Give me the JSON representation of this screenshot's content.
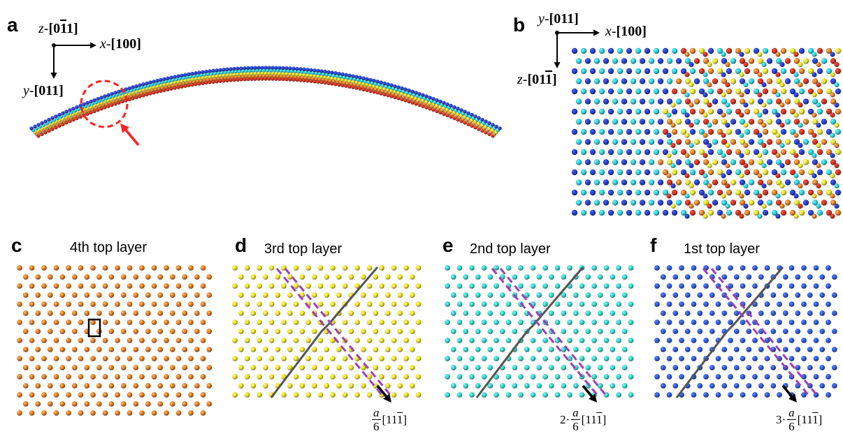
{
  "panels": {
    "a": {
      "letter": "a",
      "axes": {
        "z": {
          "prefix": "z-",
          "idx": [
            "0",
            "1",
            "1"
          ],
          "bar": 1
        },
        "x": {
          "prefix": "x-",
          "idx": [
            "1",
            "0",
            "0"
          ],
          "bar": -1
        },
        "y": {
          "prefix": "y-",
          "idx": [
            "0",
            "1",
            "1"
          ],
          "bar": -1
        }
      }
    },
    "b": {
      "letter": "b",
      "axes": {
        "y": {
          "prefix": "y-",
          "idx": [
            "0",
            "1",
            "1"
          ],
          "bar": -1
        },
        "x": {
          "prefix": "x-",
          "idx": [
            "1",
            "0",
            "0"
          ],
          "bar": -1
        },
        "z": {
          "prefix": "z-",
          "idx": [
            "0",
            "1",
            "1"
          ],
          "bar": 2
        }
      }
    },
    "c": {
      "letter": "c",
      "title": "4th top layer",
      "color": "#e07a2e"
    },
    "d": {
      "letter": "d",
      "title": "3rd top layer",
      "color": "#e8e035",
      "vector": {
        "prefix": "",
        "num": "a",
        "den": "6",
        "miller": "[11 1]"
      }
    },
    "e": {
      "letter": "e",
      "title": "2nd top layer",
      "color": "#3fd3c6",
      "vector": {
        "prefix": "2·",
        "num": "a",
        "den": "6",
        "miller": "[11 1]"
      }
    },
    "f": {
      "letter": "f",
      "title": "1st top layer",
      "color": "#3457d5",
      "vector": {
        "prefix": "3·",
        "num": "a",
        "den": "6",
        "miller": "[11 1]"
      }
    }
  },
  "colors": {
    "layers": [
      "#2b3fc4",
      "#39c9d6",
      "#e3e03a",
      "#e07a2e",
      "#cc3526"
    ],
    "highlight": "#ff2020",
    "dashed_line": "#9b3fb8",
    "solid_line": "#555555"
  }
}
